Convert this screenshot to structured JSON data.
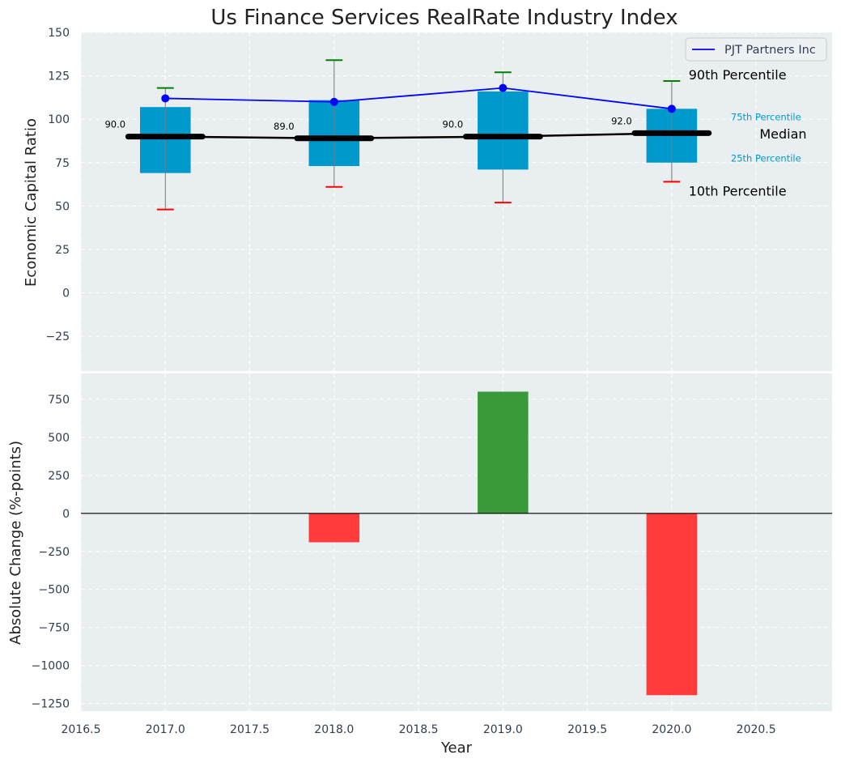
{
  "chart_data": [
    {
      "type": "box",
      "title": "Us Finance Services RealRate Industry Index",
      "ylabel": "Economic Capital Ratio",
      "xlim": [
        2016.5,
        2020.95
      ],
      "ylim": [
        -45,
        150
      ],
      "yticks": [
        -25,
        0,
        25,
        50,
        75,
        100,
        125,
        150
      ],
      "grid": true,
      "legend": {
        "position": "top-right",
        "entries": [
          "PJT Partners Inc"
        ]
      },
      "categories": [
        2017,
        2018,
        2019,
        2020
      ],
      "p10": [
        48,
        61,
        52,
        64
      ],
      "p25": [
        69,
        73,
        71,
        75
      ],
      "median": [
        90.0,
        89.0,
        90.0,
        92.0
      ],
      "median_labels": [
        "90.0",
        "89.0",
        "90.0",
        "92.0"
      ],
      "p75": [
        107,
        111,
        116,
        106
      ],
      "p90": [
        118,
        134,
        127,
        122
      ],
      "series": [
        {
          "name": "PJT Partners Inc",
          "values": [
            112,
            110,
            118,
            106
          ]
        }
      ],
      "annotations": {
        "p90": "90th Percentile",
        "p75": "75th Percentile",
        "median": "Median",
        "p25": "25th Percentile",
        "p10": "10th Percentile"
      }
    },
    {
      "type": "bar",
      "xlabel": "Year",
      "ylabel": "Absolute Change (%-points)",
      "xlim": [
        2016.5,
        2020.95
      ],
      "xticks": [
        2016.5,
        2017.0,
        2017.5,
        2018.0,
        2018.5,
        2019.0,
        2019.5,
        2020.0,
        2020.5
      ],
      "xtick_labels": [
        "2016.5",
        "2017.0",
        "2017.5",
        "2018.0",
        "2018.5",
        "2019.0",
        "2019.5",
        "2020.0",
        "2020.5"
      ],
      "ylim": [
        -1300,
        920
      ],
      "yticks": [
        -1250,
        -1000,
        -750,
        -500,
        -250,
        0,
        250,
        500,
        750
      ],
      "ytick_labels": [
        "−1250",
        "−1000",
        "−750",
        "−500",
        "−250",
        "0",
        "250",
        "500",
        "750"
      ],
      "grid": true,
      "categories": [
        2018,
        2019,
        2020
      ],
      "values": [
        -190,
        800,
        -1195
      ]
    }
  ],
  "colors": {
    "box": "#0099cc",
    "series": "#0000ff",
    "median": "#000000",
    "p90_cap": "#008000",
    "p10_cap": "#ff0000",
    "positive": "#3a9a3a",
    "negative": "#ff3b3b",
    "panel_bg": "#e9eef0"
  }
}
